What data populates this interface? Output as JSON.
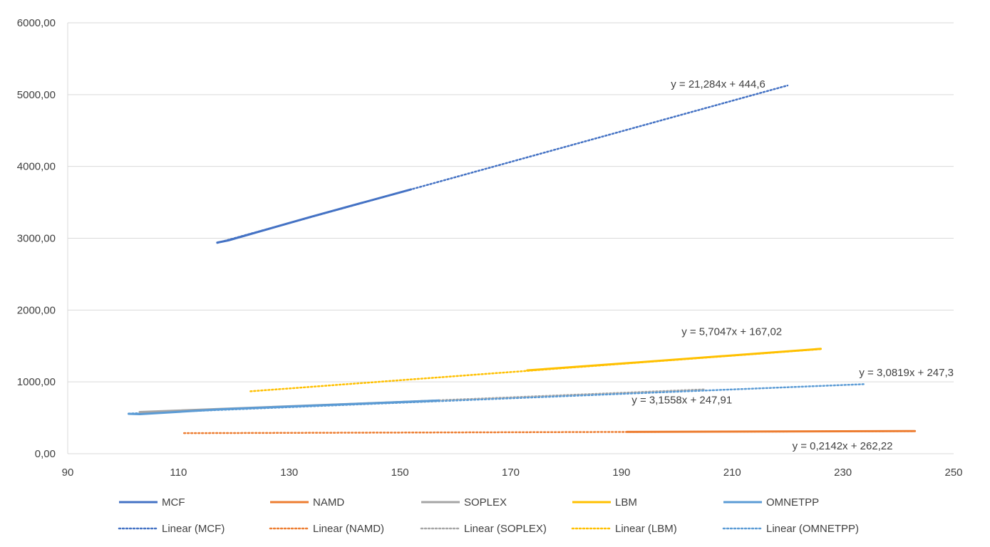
{
  "chart_data": {
    "type": "line",
    "title": "",
    "xlabel": "",
    "ylabel": "",
    "xlim": [
      90,
      250
    ],
    "ylim": [
      0,
      6000
    ],
    "x_ticks": [
      "90",
      "110",
      "130",
      "150",
      "170",
      "190",
      "210",
      "230",
      "250"
    ],
    "y_ticks": [
      "0,00",
      "1000,00",
      "2000,00",
      "3000,00",
      "4000,00",
      "5000,00",
      "6000,00"
    ],
    "grid": "horizontal",
    "legend_position": "bottom",
    "series": [
      {
        "name": "MCF",
        "color": "#4472C4",
        "x": [
          117,
          119,
          134,
          152
        ],
        "y": [
          2940,
          2970,
          3300,
          3680
        ]
      },
      {
        "name": "NAMD",
        "color": "#ED7D31",
        "x": [
          191,
          243
        ],
        "y": [
          303,
          315
        ]
      },
      {
        "name": "SOPLEX",
        "color": "#A5A5A5",
        "x": [
          103,
          157
        ],
        "y": [
          580,
          740
        ]
      },
      {
        "name": "LBM",
        "color": "#FFC000",
        "x": [
          173,
          191,
          226
        ],
        "y": [
          1160,
          1260,
          1460
        ]
      },
      {
        "name": "OMNETPP",
        "color": "#5B9BD5",
        "x": [
          101,
          103,
          118,
          157
        ],
        "y": [
          555,
          550,
          620,
          740
        ]
      }
    ],
    "trendlines": [
      {
        "name": "Linear (MCF)",
        "color": "#4472C4",
        "x": [
          117,
          220
        ],
        "equation": "y = 21,284x + 444,6",
        "eq_anchor_x": 216,
        "eq_anchor_y": 5100
      },
      {
        "name": "Linear (NAMD)",
        "color": "#ED7D31",
        "x": [
          111,
          243
        ],
        "equation": "y = 0,2142x + 262,22",
        "eq_anchor_x": 239,
        "eq_anchor_y": 60
      },
      {
        "name": "Linear (SOPLEX)",
        "color": "#A5A5A5",
        "x": [
          103,
          205
        ],
        "equation": "y = 3,1558x + 247,91",
        "eq_anchor_x": 210,
        "eq_anchor_y": 700
      },
      {
        "name": "Linear (LBM)",
        "color": "#FFC000",
        "x": [
          123,
          226
        ],
        "equation": "y = 5,7047x + 167,02",
        "eq_anchor_x": 219,
        "eq_anchor_y": 1650
      },
      {
        "name": "Linear (OMNETPP)",
        "color": "#5B9BD5",
        "x": [
          101,
          234
        ],
        "equation": "y = 3,0819x + 247,3",
        "eq_anchor_x": 250,
        "eq_anchor_y": 1080
      }
    ]
  }
}
